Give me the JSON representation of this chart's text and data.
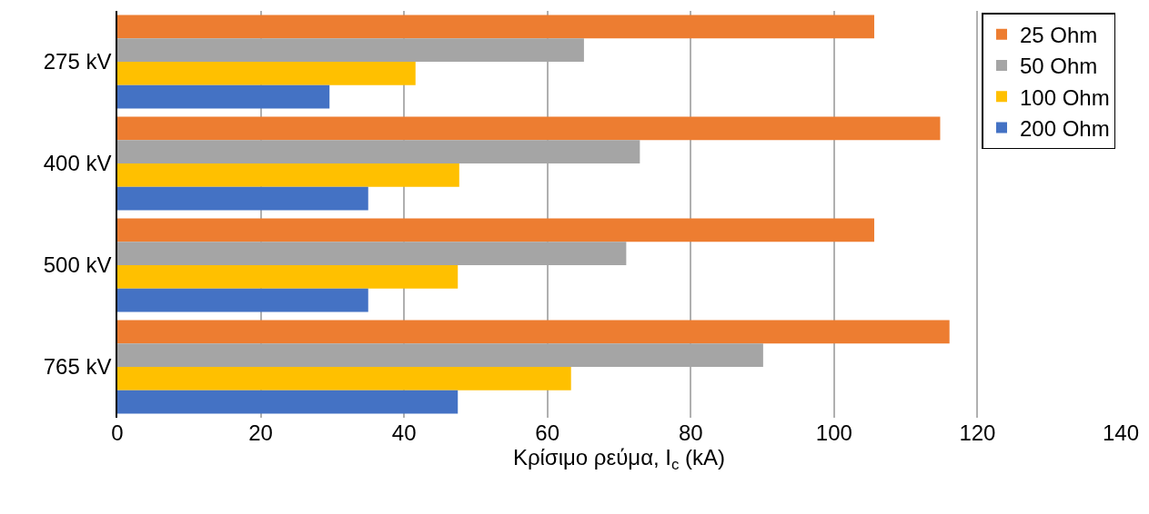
{
  "chart_data": {
    "type": "bar",
    "orientation": "horizontal",
    "xlabel": "Κρίσιμο ρεύμα, I$_{c}$ (kA)",
    "categories": [
      "275 kV",
      "400 kV",
      "500 kV",
      "765 kV"
    ],
    "series": [
      {
        "name": "25 Ohm",
        "color": "#ed7d31",
        "values": [
          105.6,
          114.8,
          105.6,
          116.1
        ]
      },
      {
        "name": "50 Ohm",
        "color": "#a5a5a5",
        "values": [
          65.1,
          72.9,
          71.0,
          90.1
        ]
      },
      {
        "name": "100 Ohm",
        "color": "#ffc000",
        "values": [
          41.6,
          47.7,
          47.5,
          63.3
        ]
      },
      {
        "name": "200 Ohm",
        "color": "#4472c4",
        "values": [
          29.6,
          35.0,
          35.0,
          47.5
        ]
      }
    ],
    "xlim": [
      0,
      140
    ],
    "xticks": [
      0,
      20,
      40,
      60,
      80,
      100,
      120,
      140
    ],
    "grid": "x",
    "legend": "top right"
  }
}
